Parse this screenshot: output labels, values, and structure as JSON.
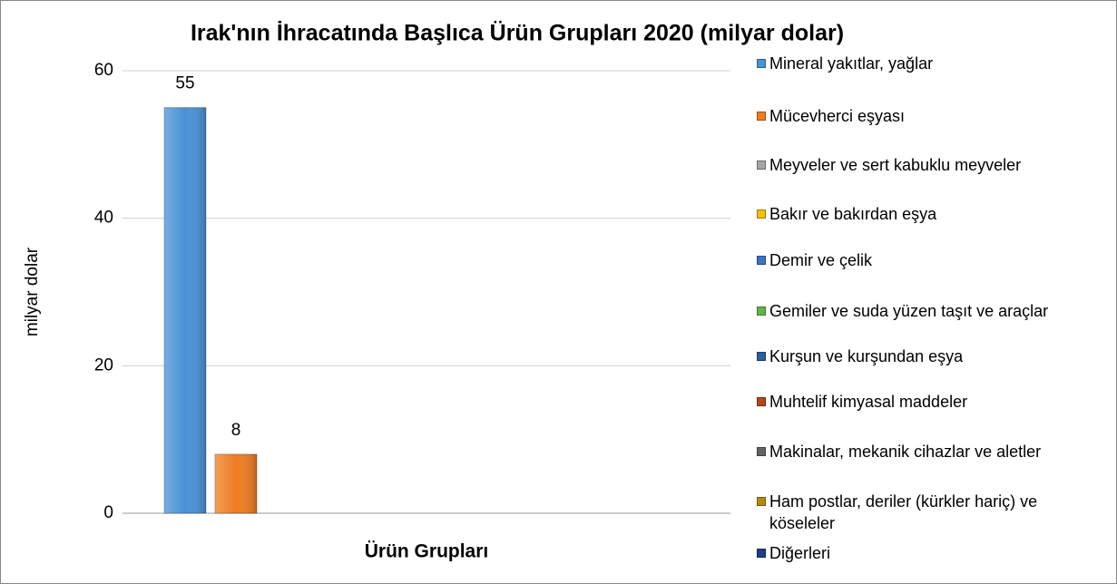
{
  "chart_data": {
    "type": "bar",
    "title": "Irak'nın İhracatında Başlıca Ürün Grupları 2020 (milyar dolar)",
    "x_label": "Ürün Grupları",
    "y_label": "milyar dolar",
    "categories": [
      null
    ],
    "series": [
      {
        "name": "Mineral yakıtlar, yağlar",
        "color": "#4a92d6",
        "values": [
          55
        ]
      },
      {
        "name": "Mücevherci eşyası",
        "color": "#ee7d22",
        "values": [
          8
        ]
      },
      {
        "name": "Meyveler ve sert kabuklu meyveler",
        "color": "#a5a5a5",
        "values": [
          null
        ]
      },
      {
        "name": "Bakır ve bakırdan eşya",
        "color": "#f5c000",
        "values": [
          null
        ]
      },
      {
        "name": "Demir ve çelik",
        "color": "#3e73c4",
        "values": [
          null
        ]
      },
      {
        "name": "Gemiler ve suda yüzen taşıt ve araçlar",
        "color": "#62b54a",
        "values": [
          null
        ]
      },
      {
        "name": "Kurşun ve kurşundan eşya",
        "color": "#2a5f9e",
        "values": [
          null
        ]
      },
      {
        "name": "Muhtelif kimyasal maddeler",
        "color": "#b0481a",
        "values": [
          null
        ]
      },
      {
        "name": "Makinalar, mekanik cihazlar ve aletler",
        "color": "#636363",
        "values": [
          null
        ]
      },
      {
        "name": "Ham postlar, deriler (kürkler hariç) ve köseleler",
        "color": "#b38a12",
        "values": [
          null
        ]
      },
      {
        "name": "Diğerleri",
        "color": "#1f3d84",
        "values": [
          null
        ]
      }
    ],
    "ylim": [
      0,
      60
    ],
    "yticks": [
      0,
      20,
      40,
      60
    ],
    "grid": true,
    "legend": "right"
  }
}
